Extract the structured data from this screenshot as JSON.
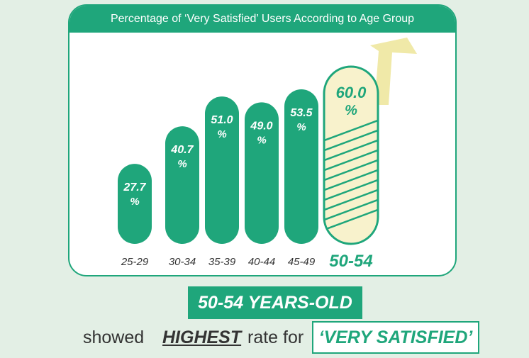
{
  "chart_data": {
    "type": "bar",
    "title": "Percentage of ‘Very Satisfied’ Users According to Age Group",
    "categories": [
      "25-29",
      "30-34",
      "35-39",
      "40-44",
      "45-49",
      "50-54"
    ],
    "values": [
      27.7,
      40.7,
      51.0,
      49.0,
      53.5,
      60.0
    ],
    "value_labels": [
      "27.7",
      "40.7",
      "51.0",
      "49.0",
      "53.5",
      "60.0"
    ],
    "unit": "%",
    "highlight_index": 5,
    "colors": {
      "bar": "#1fa67b",
      "highlight_fill": "#f8f2cc",
      "highlight_stroke": "#1fa67b",
      "arrow": "#f0e9a8"
    }
  },
  "callout": {
    "highlight": "50-54 YEARS-OLD",
    "prefix": "showed",
    "emphasis": "HIGHEST",
    "middle": "rate for",
    "tag": "‘VERY SATISFIED’"
  }
}
